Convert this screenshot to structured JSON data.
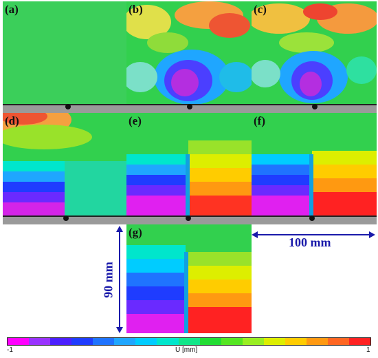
{
  "panels": [
    {
      "label": "(a)"
    },
    {
      "label": "(b)"
    },
    {
      "label": "(c)"
    },
    {
      "label": "(d)"
    },
    {
      "label": "(e)"
    },
    {
      "label": "(f)"
    },
    {
      "label": "(g)"
    }
  ],
  "scale_h": {
    "label": "100 mm"
  },
  "scale_v": {
    "label": "90 mm"
  },
  "colorbar": {
    "min_label": "-1",
    "max_label": "1",
    "title": "U [mm]",
    "colors": [
      "#ff00ff",
      "#9933ff",
      "#4b1fff",
      "#1f3cff",
      "#1f73ff",
      "#1fa6ff",
      "#00ccff",
      "#00e6cc",
      "#11e689",
      "#22dd33",
      "#55e622",
      "#99ee22",
      "#ddee00",
      "#ffcc00",
      "#ff9911",
      "#ff6622",
      "#ff2222"
    ]
  },
  "colors": {
    "arrow": "#1a1aaa",
    "label": "#1a1aaa"
  }
}
